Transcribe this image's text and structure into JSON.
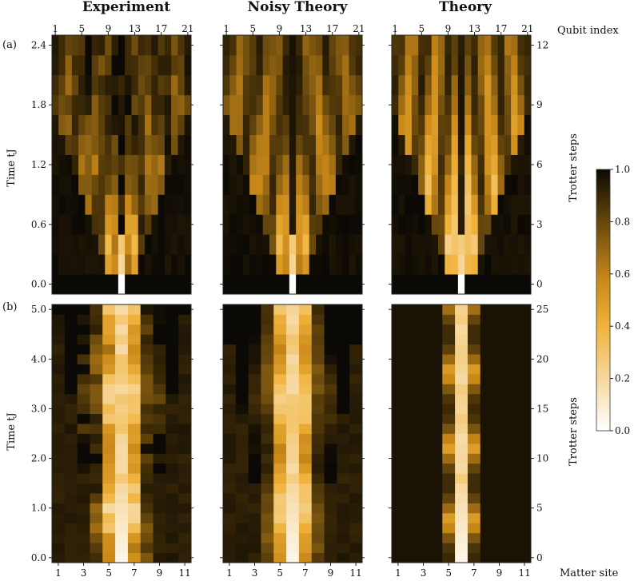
{
  "figure": {
    "panel_titles": [
      "Experiment",
      "Noisy Theory",
      "Theory"
    ],
    "row_labels": [
      "(a)",
      "(b)"
    ],
    "top_axis_label": "Qubit index",
    "bottom_axis_label": "Matter site",
    "left_axis_label": "Time tJ",
    "right_axis_label": "Trotter steps"
  },
  "colorbar": {
    "range": [
      0.0,
      1.0
    ],
    "ticks": [
      "0.0",
      "0.2",
      "0.4",
      "0.6",
      "0.8",
      "1.0"
    ],
    "colors": [
      "#ffffff",
      "#f7dca8",
      "#f0b23a",
      "#c98818",
      "#7c5610",
      "#3a2806",
      "#0b0905"
    ]
  },
  "chart_data": [
    {
      "type": "heatmap",
      "row": "a",
      "panels": [
        "Experiment",
        "Noisy Theory",
        "Theory"
      ],
      "x_label": "Qubit index",
      "x_columns": 21,
      "x_ticks": [
        "1",
        "5",
        "9",
        "13",
        "17",
        "21"
      ],
      "y_label": "Time tJ",
      "y_ticks": [
        "0.0",
        "0.6",
        "1.2",
        "1.8",
        "2.4"
      ],
      "y_range": [
        0.0,
        2.4
      ],
      "secondary_y_label": "Trotter steps",
      "secondary_y_ticks": [
        "0",
        "3",
        "6",
        "9",
        "12"
      ],
      "trotter_steps": 12,
      "value_range": [
        0,
        1
      ],
      "center_column": 11,
      "description": "Excitation spreads in a light cone from the central qubit"
    },
    {
      "type": "heatmap",
      "row": "b",
      "panels": [
        "Experiment",
        "Noisy Theory",
        "Theory"
      ],
      "x_label": "Matter site",
      "x_columns": 11,
      "x_ticks": [
        "1",
        "3",
        "5",
        "7",
        "9",
        "11"
      ],
      "y_label": "Time tJ",
      "y_ticks": [
        "0.0",
        "1.0",
        "2.0",
        "3.0",
        "4.0",
        "5.0"
      ],
      "y_range": [
        0.0,
        5.0
      ],
      "secondary_y_label": "Trotter steps",
      "secondary_y_ticks": [
        "0",
        "5",
        "10",
        "15",
        "20",
        "25"
      ],
      "trotter_steps": 25,
      "value_range": [
        0,
        1
      ],
      "center_column": 6,
      "description": "Localized excitation at central matter site"
    }
  ]
}
